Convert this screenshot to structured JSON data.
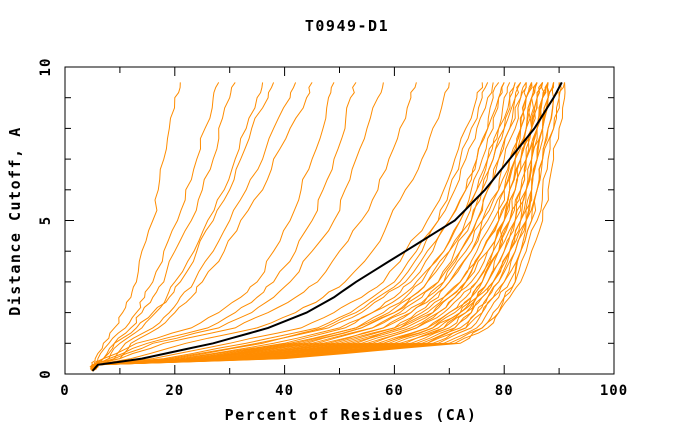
{
  "title": "T0949-D1",
  "axes": {
    "x": {
      "label": "Percent of Residues (CA)",
      "min": 0,
      "max": 100,
      "major_ticks": [
        0,
        20,
        40,
        60,
        80,
        100
      ],
      "minor_step": 10
    },
    "y": {
      "label": "Distance Cutoff, A",
      "min": 0,
      "max": 10,
      "major_ticks": [
        0,
        5,
        10
      ],
      "minor_step": 1
    }
  },
  "colors": {
    "model_lines": "#ff8c00",
    "highlight_line": "#000000",
    "axis": "#000000",
    "background": "#ffffff"
  },
  "chart_data": {
    "type": "line",
    "title": "T0949-D1",
    "xlabel": "Percent of Residues (CA)",
    "ylabel": "Distance Cutoff, A",
    "xlim": [
      0,
      100
    ],
    "ylim": [
      0,
      10
    ],
    "legend": "none",
    "grid": false,
    "note": "Each series lists percent-of-residues (x) at each distance cutoff in angstroms (y); orange = predicted models, black = highlighted model",
    "cutoffs": [
      0.3,
      0.5,
      1,
      1.5,
      2,
      2.5,
      3,
      4,
      5,
      6,
      7,
      8,
      9,
      9.5
    ],
    "start_point": {
      "percent": 5,
      "cutoff": 0.1
    },
    "highlight_series": {
      "name": "highlighted-model",
      "color": "#000000",
      "percents": [
        6,
        14,
        27,
        37,
        44,
        49,
        53,
        62,
        71,
        76.5,
        81,
        85.5,
        89,
        90.5
      ]
    },
    "model_series_color": "#ff8c00",
    "model_series": [
      [
        5,
        5.5,
        7,
        9,
        10.5,
        12,
        13,
        14,
        16,
        17,
        18,
        19,
        20,
        21
      ],
      [
        5.5,
        6,
        8,
        11,
        13,
        14.5,
        16,
        18,
        20.5,
        22,
        24,
        25.5,
        27,
        28
      ],
      [
        5,
        7,
        9,
        12,
        14,
        16,
        18,
        20,
        23,
        25,
        27,
        28,
        30,
        31
      ],
      [
        6,
        8,
        10,
        14,
        16.5,
        18.5,
        20,
        23.5,
        26,
        29,
        31,
        33,
        35,
        36
      ],
      [
        5.5,
        7,
        9,
        13,
        16,
        19,
        21,
        24,
        27,
        30,
        32,
        34,
        37,
        38
      ],
      [
        5,
        9,
        11,
        16,
        19,
        21,
        23.5,
        27,
        30,
        33,
        36,
        38,
        41,
        42
      ],
      [
        6,
        10,
        12,
        17,
        20,
        23,
        25,
        29,
        32,
        36,
        38,
        41,
        44,
        45
      ],
      [
        5.5,
        7,
        13,
        23,
        28,
        32,
        35,
        38,
        41,
        43,
        45,
        47,
        48,
        49
      ],
      [
        5,
        8,
        15,
        26,
        31,
        35,
        38,
        42,
        45,
        47,
        49,
        51,
        52,
        53
      ],
      [
        6,
        9,
        16,
        28,
        34,
        38,
        41,
        45,
        49,
        51,
        53,
        55,
        57,
        58
      ],
      [
        5.5,
        10,
        18,
        31,
        37,
        42,
        46,
        50,
        54,
        57,
        59,
        61,
        63,
        64
      ],
      [
        5,
        12,
        22,
        35,
        42,
        47,
        51,
        56,
        59,
        62,
        65,
        67,
        69,
        70
      ],
      [
        5.5,
        16,
        30,
        43,
        49,
        54,
        58,
        62,
        66,
        69,
        71,
        73,
        75,
        76
      ],
      [
        5.5,
        18,
        33,
        46,
        52,
        56,
        60,
        64,
        68,
        71,
        73,
        75,
        77,
        78
      ],
      [
        6,
        19,
        35,
        48,
        54,
        58,
        62,
        66,
        70,
        73,
        75,
        77,
        79,
        80
      ],
      [
        5,
        20,
        36,
        47,
        53,
        57,
        61,
        65,
        68,
        70,
        72,
        74,
        76,
        77
      ],
      [
        5.5,
        21,
        38,
        50,
        56,
        61,
        64,
        69,
        72,
        75,
        77,
        79,
        81,
        82
      ],
      [
        6,
        22,
        40,
        51,
        56,
        60,
        63,
        67,
        70,
        73,
        75,
        77,
        78,
        79
      ],
      [
        5.5,
        23,
        41,
        53,
        59,
        63,
        66,
        70,
        74,
        76,
        78,
        80,
        82,
        83
      ],
      [
        5,
        23,
        42,
        53,
        58,
        62,
        65,
        69,
        72,
        74,
        76,
        78,
        79,
        80
      ],
      [
        6,
        24,
        43,
        54,
        60,
        64,
        68,
        72,
        75,
        77,
        79,
        81,
        83,
        84
      ],
      [
        5.5,
        24,
        44,
        54,
        60,
        63,
        66,
        70,
        73,
        75,
        77,
        79,
        80,
        81
      ],
      [
        6,
        25,
        45,
        56,
        62,
        66,
        69,
        73,
        76,
        79,
        81,
        83,
        84,
        85
      ],
      [
        5,
        25,
        46,
        56,
        61,
        65,
        68,
        71,
        74,
        76,
        78,
        80,
        81,
        82
      ],
      [
        6,
        26,
        47,
        58,
        63,
        67,
        70,
        74,
        77,
        80,
        82,
        84,
        85,
        86
      ],
      [
        5.5,
        26,
        48,
        58,
        63,
        66,
        69,
        72,
        75,
        77,
        79,
        81,
        82,
        83
      ],
      [
        6,
        27,
        49,
        60,
        65,
        69,
        72,
        76,
        79,
        81,
        83,
        85,
        86,
        87
      ],
      [
        5,
        28,
        50,
        60,
        64,
        68,
        70,
        74,
        76,
        79,
        80,
        82,
        83,
        84
      ],
      [
        6,
        28,
        51,
        61,
        67,
        70,
        73,
        77,
        80,
        82,
        84,
        86,
        87,
        88
      ],
      [
        5.5,
        29,
        52,
        61,
        66,
        69,
        72,
        75,
        78,
        80,
        81,
        83,
        84,
        85
      ],
      [
        6,
        29,
        53,
        62,
        67,
        70,
        73,
        76,
        79,
        81,
        82,
        84,
        85,
        86
      ],
      [
        5,
        30,
        54,
        63,
        68,
        71,
        74,
        77,
        80,
        82,
        83,
        85,
        86,
        87
      ],
      [
        6,
        30,
        55,
        64,
        69,
        72,
        75,
        78,
        81,
        83,
        84,
        86,
        87,
        88
      ],
      [
        5.5,
        31,
        56,
        64,
        68,
        71,
        73,
        76,
        79,
        80,
        82,
        83,
        84,
        85
      ],
      [
        6,
        31,
        57,
        66,
        70,
        74,
        76,
        79,
        82,
        84,
        85,
        87,
        88,
        89
      ],
      [
        5,
        32,
        58,
        66,
        70,
        73,
        75,
        78,
        80,
        81,
        83,
        84,
        85,
        86
      ],
      [
        6,
        32,
        59,
        67,
        71,
        74,
        76,
        79,
        81,
        83,
        84,
        85,
        86,
        87
      ],
      [
        5.5,
        33,
        60,
        68,
        72,
        75,
        77,
        80,
        82,
        84,
        85,
        86,
        87,
        88
      ],
      [
        6,
        34,
        61,
        69,
        73,
        76,
        78,
        81,
        83,
        85,
        86,
        87,
        88,
        89
      ],
      [
        5,
        34,
        62,
        69,
        72,
        74,
        76,
        79,
        81,
        82,
        83,
        85,
        85,
        86
      ],
      [
        6,
        35,
        63,
        70,
        73,
        75,
        77,
        80,
        82,
        83,
        84,
        85,
        86,
        87
      ],
      [
        5.5,
        35,
        64,
        71,
        74,
        76,
        78,
        81,
        83,
        84,
        85,
        86,
        87,
        88
      ],
      [
        6,
        36,
        65,
        72,
        75,
        77,
        79,
        82,
        84,
        85,
        86,
        87,
        88,
        89
      ],
      [
        5,
        36,
        66,
        73,
        76,
        78,
        80,
        83,
        85,
        86,
        87,
        88,
        89,
        90
      ],
      [
        6,
        37,
        67,
        73,
        75,
        77,
        79,
        81,
        83,
        84,
        85,
        86,
        87,
        87
      ],
      [
        5.5,
        37,
        68,
        74,
        76,
        78,
        80,
        82,
        84,
        85,
        86,
        87,
        88,
        88
      ],
      [
        6,
        38,
        69,
        75,
        77,
        79,
        81,
        83,
        85,
        86,
        87,
        88,
        89,
        89
      ],
      [
        5,
        39,
        70,
        76,
        78,
        80,
        82,
        84,
        86,
        87,
        88,
        89,
        90,
        90
      ],
      [
        6,
        39,
        71,
        77,
        79,
        81,
        83,
        85,
        87,
        88,
        89,
        90,
        91,
        91
      ],
      [
        5.5,
        40,
        72,
        76,
        79,
        80,
        82,
        83,
        84,
        85,
        86,
        87,
        88,
        88
      ],
      [
        6,
        36,
        66,
        71,
        74,
        75,
        77,
        79,
        80,
        81,
        82,
        83,
        84,
        84
      ],
      [
        5,
        32,
        58,
        67,
        72,
        75,
        78,
        81,
        84,
        86,
        87,
        89,
        90,
        91
      ]
    ]
  }
}
